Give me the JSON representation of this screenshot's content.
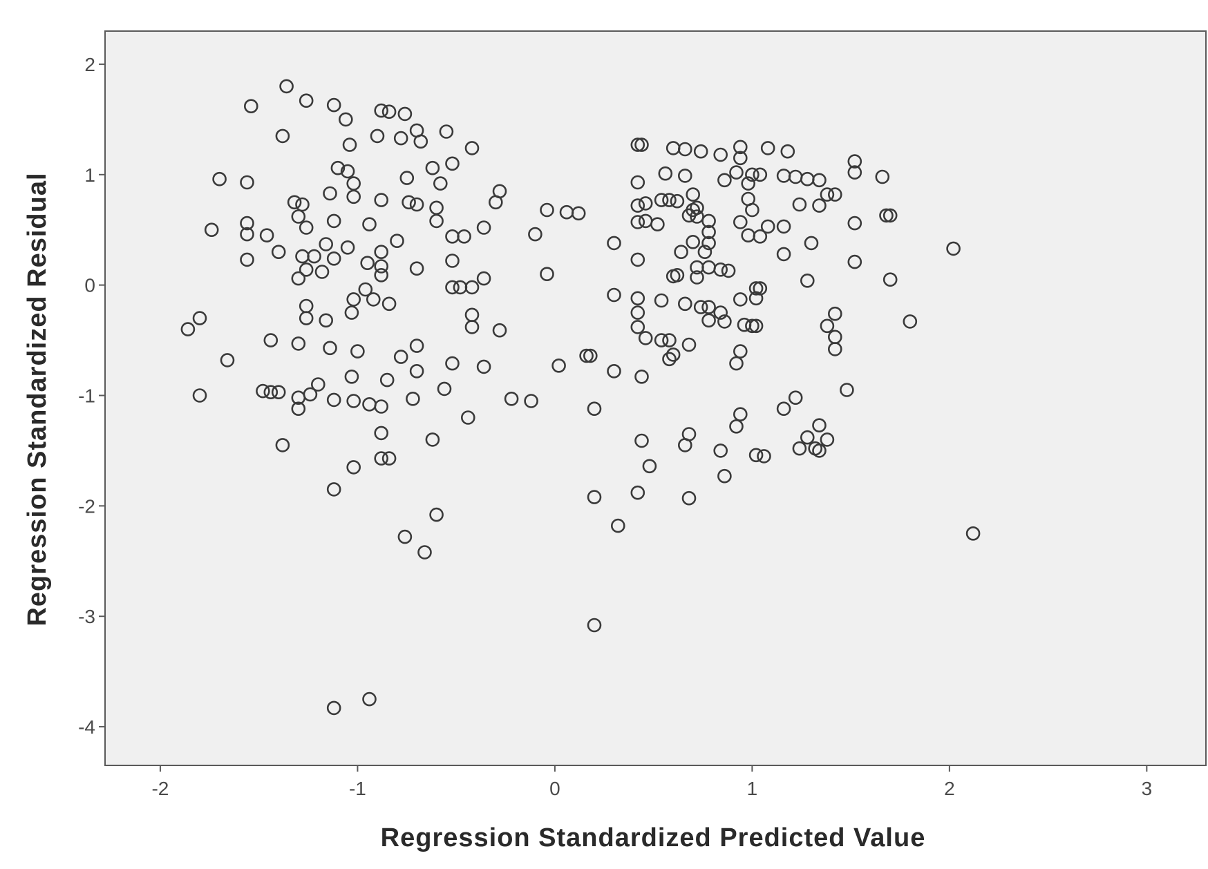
{
  "chart_data": {
    "type": "scatter",
    "title": "",
    "xlabel": "Regression Standardized Predicted Value",
    "ylabel": "Regression Standardized Residual",
    "xlim": [
      -2.28,
      3.3
    ],
    "ylim": [
      -4.35,
      2.3
    ],
    "x_ticks": [
      {
        "value": -2,
        "label": "-2"
      },
      {
        "value": -1,
        "label": "-1"
      },
      {
        "value": 0,
        "label": "0"
      },
      {
        "value": 1,
        "label": "1"
      },
      {
        "value": 2,
        "label": "2"
      },
      {
        "value": 3,
        "label": "3"
      }
    ],
    "y_ticks": [
      {
        "value": 2,
        "label": "2"
      },
      {
        "value": 1,
        "label": "1"
      },
      {
        "value": 0,
        "label": "0"
      },
      {
        "value": -1,
        "label": "-1"
      },
      {
        "value": -2,
        "label": "-2"
      },
      {
        "value": -3,
        "label": "-3"
      },
      {
        "value": -4,
        "label": "-4"
      }
    ],
    "grid": false,
    "legend": "none",
    "plot_background": "#f0f0f0",
    "marker": {
      "shape": "hollow-circle",
      "color": "#3a3a3a"
    },
    "series": [
      {
        "points": [
          [
            -1.36,
            1.8
          ],
          [
            -1.54,
            1.62
          ],
          [
            -1.26,
            1.67
          ],
          [
            -1.12,
            1.63
          ],
          [
            -1.06,
            1.5
          ],
          [
            -0.88,
            1.58
          ],
          [
            -0.84,
            1.57
          ],
          [
            -0.76,
            1.55
          ],
          [
            -1.38,
            1.35
          ],
          [
            -1.04,
            1.27
          ],
          [
            -0.9,
            1.35
          ],
          [
            -0.78,
            1.33
          ],
          [
            -0.7,
            1.4
          ],
          [
            -0.68,
            1.3
          ],
          [
            -0.55,
            1.39
          ],
          [
            -0.42,
            1.24
          ],
          [
            -1.1,
            1.06
          ],
          [
            -1.05,
            1.03
          ],
          [
            -1.02,
            0.92
          ],
          [
            -0.75,
            0.97
          ],
          [
            -0.62,
            1.06
          ],
          [
            -0.58,
            0.92
          ],
          [
            -0.52,
            1.1
          ],
          [
            -0.28,
            0.85
          ],
          [
            -1.7,
            0.96
          ],
          [
            -1.56,
            0.93
          ],
          [
            -1.32,
            0.75
          ],
          [
            -1.28,
            0.73
          ],
          [
            -1.14,
            0.83
          ],
          [
            -1.02,
            0.8
          ],
          [
            -0.88,
            0.77
          ],
          [
            -0.74,
            0.75
          ],
          [
            -0.7,
            0.73
          ],
          [
            -0.6,
            0.7
          ],
          [
            -0.3,
            0.75
          ],
          [
            -1.74,
            0.5
          ],
          [
            -1.56,
            0.56
          ],
          [
            -1.56,
            0.46
          ],
          [
            -1.46,
            0.45
          ],
          [
            -1.3,
            0.62
          ],
          [
            -1.26,
            0.52
          ],
          [
            -1.12,
            0.58
          ],
          [
            -0.94,
            0.55
          ],
          [
            -0.6,
            0.58
          ],
          [
            -0.52,
            0.44
          ],
          [
            -0.46,
            0.44
          ],
          [
            -0.36,
            0.52
          ],
          [
            -1.4,
            0.3
          ],
          [
            -1.28,
            0.26
          ],
          [
            -1.22,
            0.26
          ],
          [
            -1.16,
            0.37
          ],
          [
            -1.12,
            0.24
          ],
          [
            -1.05,
            0.34
          ],
          [
            -0.95,
            0.2
          ],
          [
            -0.88,
            0.3
          ],
          [
            -0.8,
            0.4
          ],
          [
            -1.56,
            0.23
          ],
          [
            -1.3,
            0.06
          ],
          [
            -1.26,
            0.14
          ],
          [
            -1.18,
            0.12
          ],
          [
            -0.88,
            0.17
          ],
          [
            -0.88,
            0.09
          ],
          [
            -0.7,
            0.15
          ],
          [
            -0.52,
            0.22
          ],
          [
            -0.52,
            -0.02
          ],
          [
            -0.48,
            -0.02
          ],
          [
            -0.42,
            -0.02
          ],
          [
            -0.36,
            0.06
          ],
          [
            -1.02,
            -0.13
          ],
          [
            -0.96,
            -0.04
          ],
          [
            -0.92,
            -0.13
          ],
          [
            -0.84,
            -0.17
          ],
          [
            -1.26,
            -0.19
          ],
          [
            -1.26,
            -0.3
          ],
          [
            -1.16,
            -0.32
          ],
          [
            -1.03,
            -0.25
          ],
          [
            -0.42,
            -0.27
          ],
          [
            -0.42,
            -0.38
          ],
          [
            -0.28,
            -0.41
          ],
          [
            -1.86,
            -0.4
          ],
          [
            -1.8,
            -0.3
          ],
          [
            -1.66,
            -0.68
          ],
          [
            -1.44,
            -0.5
          ],
          [
            -1.3,
            -0.53
          ],
          [
            -1.14,
            -0.57
          ],
          [
            -1.0,
            -0.6
          ],
          [
            -0.78,
            -0.65
          ],
          [
            -0.7,
            -0.55
          ],
          [
            -0.7,
            -0.78
          ],
          [
            -0.52,
            -0.71
          ],
          [
            -0.36,
            -0.74
          ],
          [
            -1.8,
            -1.0
          ],
          [
            -1.48,
            -0.96
          ],
          [
            -1.44,
            -0.97
          ],
          [
            -1.4,
            -0.97
          ],
          [
            -1.3,
            -1.02
          ],
          [
            -1.24,
            -0.99
          ],
          [
            -1.2,
            -0.9
          ],
          [
            -1.12,
            -1.04
          ],
          [
            -1.03,
            -0.83
          ],
          [
            -1.02,
            -1.05
          ],
          [
            -0.94,
            -1.08
          ],
          [
            -0.88,
            -1.1
          ],
          [
            -0.85,
            -0.86
          ],
          [
            -0.72,
            -1.03
          ],
          [
            -0.56,
            -0.94
          ],
          [
            -0.44,
            -1.2
          ],
          [
            -1.3,
            -1.12
          ],
          [
            -1.38,
            -1.45
          ],
          [
            -1.02,
            -1.65
          ],
          [
            -0.88,
            -1.34
          ],
          [
            -0.88,
            -1.57
          ],
          [
            -0.84,
            -1.57
          ],
          [
            -0.62,
            -1.4
          ],
          [
            -1.12,
            -1.85
          ],
          [
            -0.6,
            -2.08
          ],
          [
            -0.76,
            -2.28
          ],
          [
            -0.66,
            -2.42
          ],
          [
            -1.12,
            -3.83
          ],
          [
            -0.94,
            -3.75
          ],
          [
            -0.22,
            -1.03
          ],
          [
            -0.12,
            -1.05
          ],
          [
            0.02,
            -0.73
          ],
          [
            0.16,
            -0.64
          ],
          [
            0.18,
            -0.64
          ],
          [
            0.2,
            -1.12
          ],
          [
            0.2,
            -1.92
          ],
          [
            0.2,
            -3.08
          ],
          [
            0.3,
            -0.78
          ],
          [
            0.32,
            -2.18
          ],
          [
            -0.1,
            0.46
          ],
          [
            -0.04,
            0.68
          ],
          [
            0.06,
            0.66
          ],
          [
            0.12,
            0.65
          ],
          [
            -0.04,
            0.1
          ],
          [
            0.3,
            0.38
          ],
          [
            0.3,
            -0.09
          ],
          [
            0.42,
            1.27
          ],
          [
            0.44,
            1.27
          ],
          [
            0.6,
            1.24
          ],
          [
            0.66,
            1.23
          ],
          [
            0.74,
            1.21
          ],
          [
            0.84,
            1.18
          ],
          [
            0.94,
            1.25
          ],
          [
            0.94,
            1.15
          ],
          [
            1.08,
            1.24
          ],
          [
            1.18,
            1.21
          ],
          [
            0.42,
            0.93
          ],
          [
            0.56,
            1.01
          ],
          [
            0.66,
            0.99
          ],
          [
            0.86,
            0.95
          ],
          [
            0.92,
            1.02
          ],
          [
            0.98,
            0.92
          ],
          [
            1.0,
            1.0
          ],
          [
            1.04,
            1.0
          ],
          [
            1.16,
            0.99
          ],
          [
            1.22,
            0.98
          ],
          [
            1.28,
            0.96
          ],
          [
            1.34,
            0.95
          ],
          [
            1.42,
            0.82
          ],
          [
            1.52,
            1.12
          ],
          [
            1.52,
            1.02
          ],
          [
            1.66,
            0.98
          ],
          [
            0.42,
            0.72
          ],
          [
            0.46,
            0.74
          ],
          [
            0.54,
            0.77
          ],
          [
            0.58,
            0.77
          ],
          [
            0.62,
            0.76
          ],
          [
            0.7,
            0.82
          ],
          [
            0.7,
            0.68
          ],
          [
            0.72,
            0.7
          ],
          [
            0.98,
            0.78
          ],
          [
            1.0,
            0.68
          ],
          [
            1.24,
            0.73
          ],
          [
            1.34,
            0.72
          ],
          [
            1.38,
            0.82
          ],
          [
            0.42,
            0.57
          ],
          [
            0.46,
            0.58
          ],
          [
            0.52,
            0.55
          ],
          [
            0.68,
            0.63
          ],
          [
            0.72,
            0.62
          ],
          [
            0.78,
            0.58
          ],
          [
            0.78,
            0.48
          ],
          [
            0.94,
            0.57
          ],
          [
            0.98,
            0.45
          ],
          [
            1.04,
            0.44
          ],
          [
            1.08,
            0.53
          ],
          [
            1.16,
            0.53
          ],
          [
            1.3,
            0.38
          ],
          [
            1.52,
            0.56
          ],
          [
            1.68,
            0.63
          ],
          [
            1.7,
            0.63
          ],
          [
            0.64,
            0.3
          ],
          [
            0.7,
            0.39
          ],
          [
            0.72,
            0.16
          ],
          [
            0.76,
            0.3
          ],
          [
            0.78,
            0.38
          ],
          [
            0.78,
            0.16
          ],
          [
            0.84,
            0.14
          ],
          [
            0.88,
            0.13
          ],
          [
            0.6,
            0.08
          ],
          [
            0.62,
            0.09
          ],
          [
            0.72,
            0.07
          ],
          [
            0.42,
            0.23
          ],
          [
            1.16,
            0.28
          ],
          [
            1.28,
            0.04
          ],
          [
            1.52,
            0.21
          ],
          [
            1.7,
            0.05
          ],
          [
            2.02,
            0.33
          ],
          [
            0.42,
            -0.12
          ],
          [
            0.42,
            -0.25
          ],
          [
            0.42,
            -0.38
          ],
          [
            0.54,
            -0.14
          ],
          [
            0.66,
            -0.17
          ],
          [
            0.74,
            -0.2
          ],
          [
            0.78,
            -0.2
          ],
          [
            0.78,
            -0.32
          ],
          [
            0.84,
            -0.25
          ],
          [
            0.86,
            -0.33
          ],
          [
            0.94,
            -0.13
          ],
          [
            0.96,
            -0.36
          ],
          [
            1.0,
            -0.37
          ],
          [
            1.02,
            -0.37
          ],
          [
            1.02,
            -0.12
          ],
          [
            1.02,
            -0.03
          ],
          [
            1.04,
            -0.03
          ],
          [
            0.46,
            -0.48
          ],
          [
            0.54,
            -0.5
          ],
          [
            0.58,
            -0.5
          ],
          [
            0.58,
            -0.67
          ],
          [
            0.6,
            -0.63
          ],
          [
            0.68,
            -0.54
          ],
          [
            0.94,
            -0.6
          ],
          [
            0.92,
            -0.71
          ],
          [
            0.44,
            -0.83
          ],
          [
            1.38,
            -0.37
          ],
          [
            1.42,
            -0.26
          ],
          [
            1.42,
            -0.47
          ],
          [
            1.42,
            -0.58
          ],
          [
            1.8,
            -0.33
          ],
          [
            1.48,
            -0.95
          ],
          [
            0.44,
            -1.41
          ],
          [
            0.48,
            -1.64
          ],
          [
            0.42,
            -1.88
          ],
          [
            0.66,
            -1.45
          ],
          [
            0.68,
            -1.35
          ],
          [
            0.68,
            -1.93
          ],
          [
            0.86,
            -1.73
          ],
          [
            0.84,
            -1.5
          ],
          [
            0.92,
            -1.28
          ],
          [
            0.94,
            -1.17
          ],
          [
            1.02,
            -1.54
          ],
          [
            1.06,
            -1.55
          ],
          [
            1.16,
            -1.12
          ],
          [
            1.22,
            -1.02
          ],
          [
            1.24,
            -1.48
          ],
          [
            1.28,
            -1.38
          ],
          [
            1.32,
            -1.48
          ],
          [
            1.34,
            -1.5
          ],
          [
            1.34,
            -1.27
          ],
          [
            1.38,
            -1.4
          ],
          [
            2.12,
            -2.25
          ]
        ]
      }
    ]
  }
}
